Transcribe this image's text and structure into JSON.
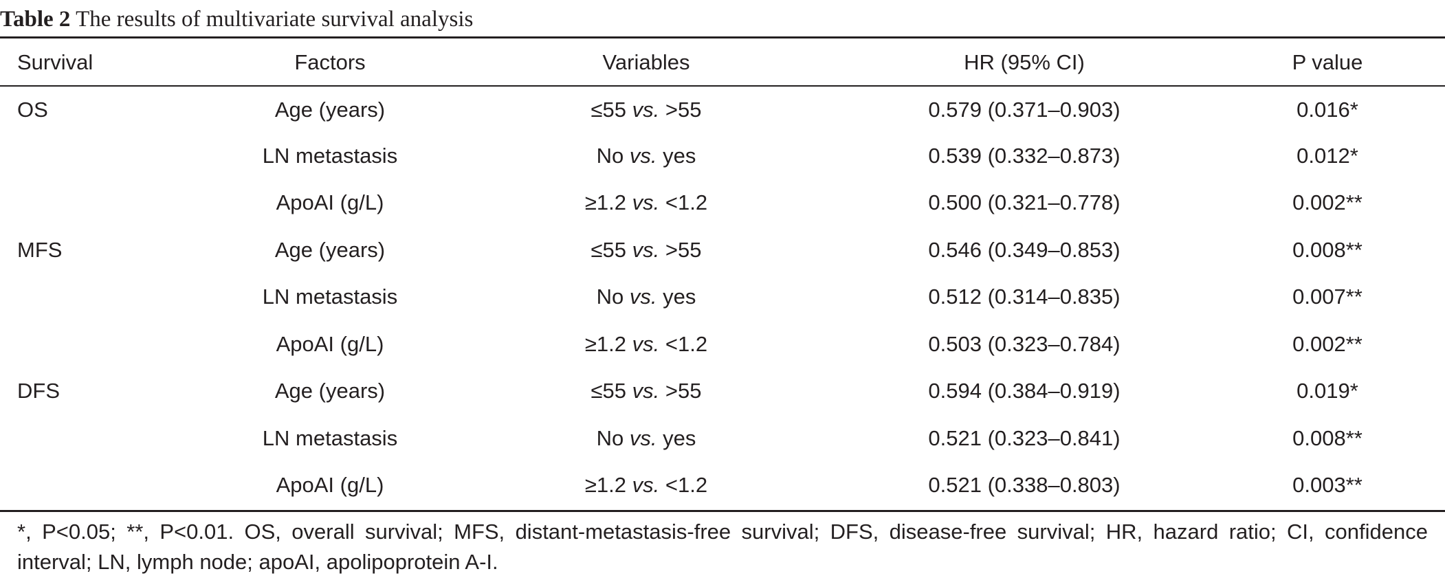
{
  "caption": {
    "label": "Table 2",
    "text": "The results of multivariate survival analysis"
  },
  "table": {
    "headers": [
      "Survival",
      "Factors",
      "Variables",
      "HR (95% CI)",
      "P value"
    ],
    "rows": [
      {
        "survival": "OS",
        "factor": "Age (years)",
        "var_a": "≤55",
        "vs": "vs.",
        "var_b": ">55",
        "hr": "0.579 (0.371–0.903)",
        "p": "0.016*"
      },
      {
        "survival": "",
        "factor": "LN metastasis",
        "var_a": "No",
        "vs": "vs.",
        "var_b": "yes",
        "hr": "0.539 (0.332–0.873)",
        "p": "0.012*"
      },
      {
        "survival": "",
        "factor": "ApoAI (g/L)",
        "var_a": "≥1.2",
        "vs": "vs.",
        "var_b": "<1.2",
        "hr": "0.500 (0.321–0.778)",
        "p": "0.002**"
      },
      {
        "survival": "MFS",
        "factor": "Age (years)",
        "var_a": "≤55",
        "vs": "vs.",
        "var_b": ">55",
        "hr": "0.546 (0.349–0.853)",
        "p": "0.008**"
      },
      {
        "survival": "",
        "factor": "LN metastasis",
        "var_a": "No",
        "vs": "vs.",
        "var_b": "yes",
        "hr": "0.512 (0.314–0.835)",
        "p": "0.007**"
      },
      {
        "survival": "",
        "factor": "ApoAI (g/L)",
        "var_a": "≥1.2",
        "vs": "vs.",
        "var_b": "<1.2",
        "hr": "0.503 (0.323–0.784)",
        "p": "0.002**"
      },
      {
        "survival": "DFS",
        "factor": "Age (years)",
        "var_a": "≤55",
        "vs": "vs.",
        "var_b": ">55",
        "hr": "0.594 (0.384–0.919)",
        "p": "0.019*"
      },
      {
        "survival": "",
        "factor": "LN metastasis",
        "var_a": "No",
        "vs": "vs.",
        "var_b": "yes",
        "hr": "0.521 (0.323–0.841)",
        "p": "0.008**"
      },
      {
        "survival": "",
        "factor": "ApoAI (g/L)",
        "var_a": "≥1.2",
        "vs": "vs.",
        "var_b": "<1.2",
        "hr": "0.521 (0.338–0.803)",
        "p": "0.003**"
      }
    ]
  },
  "footnote": "*, P<0.05; **, P<0.01. OS, overall survival; MFS, distant-metastasis-free survival; DFS, disease-free survival; HR, hazard ratio; CI, confidence interval; LN, lymph node; apoAI, apolipoprotein A-I."
}
